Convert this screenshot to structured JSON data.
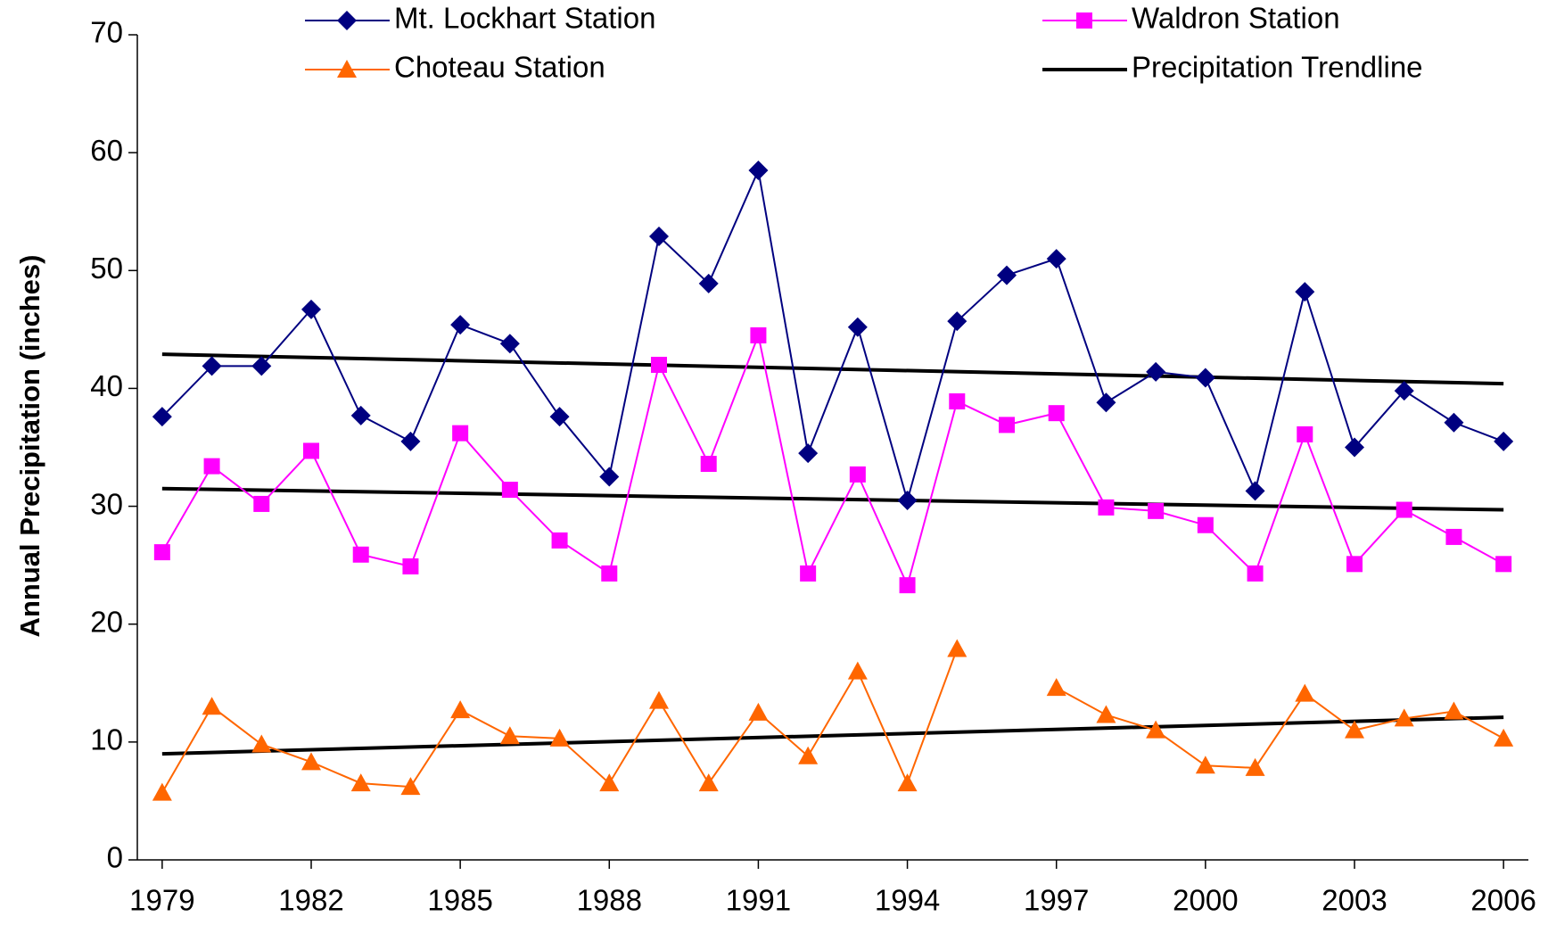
{
  "chart_data": {
    "type": "line",
    "y_label": "Annual Precipitation (inches)",
    "x": [
      1979,
      1980,
      1981,
      1982,
      1983,
      1984,
      1985,
      1986,
      1987,
      1988,
      1989,
      1990,
      1991,
      1992,
      1993,
      1994,
      1995,
      1996,
      1997,
      1998,
      1999,
      2000,
      2001,
      2002,
      2003,
      2004,
      2005,
      2006
    ],
    "xlim": [
      1978.5,
      2006.5
    ],
    "xticks": [
      1979,
      1982,
      1985,
      1988,
      1991,
      1994,
      1997,
      2000,
      2003,
      2006
    ],
    "ylim": [
      0,
      70
    ],
    "yticks": [
      0,
      10,
      20,
      30,
      40,
      50,
      60,
      70
    ],
    "series": [
      {
        "name": "Mt. Lockhart Station",
        "color": "#000080",
        "marker": "diamond",
        "values": [
          37.6,
          41.9,
          41.9,
          46.7,
          37.7,
          35.5,
          45.4,
          43.8,
          37.6,
          32.5,
          52.9,
          48.9,
          58.5,
          34.5,
          45.2,
          30.5,
          45.7,
          49.6,
          51.0,
          38.8,
          41.4,
          40.9,
          31.3,
          48.2,
          35.0,
          39.8,
          37.1,
          35.5
        ]
      },
      {
        "name": "Waldron Station",
        "color": "#ff00ff",
        "marker": "square",
        "values": [
          26.1,
          33.4,
          30.2,
          34.7,
          25.9,
          24.9,
          36.2,
          31.4,
          27.1,
          24.3,
          42.0,
          33.6,
          44.5,
          24.3,
          32.7,
          23.3,
          38.9,
          36.9,
          37.9,
          29.9,
          29.6,
          28.4,
          24.3,
          36.1,
          25.1,
          29.7,
          27.4,
          25.1
        ]
      },
      {
        "name": "Choteau Station",
        "color": "#ff6600",
        "marker": "triangle",
        "values": [
          5.7,
          13.0,
          9.8,
          8.3,
          6.5,
          6.2,
          12.7,
          10.5,
          10.3,
          6.5,
          13.5,
          6.5,
          12.5,
          8.8,
          16.0,
          6.5,
          17.9,
          null,
          14.6,
          12.3,
          11.0,
          8.0,
          7.8,
          14.1,
          11.0,
          12.0,
          12.6,
          10.3
        ]
      }
    ],
    "trendline": {
      "name": "Precipitation Trendline",
      "color": "#000000",
      "x": [
        1979,
        2006
      ],
      "lines": [
        [
          42.9,
          40.4
        ],
        [
          31.5,
          29.7
        ],
        [
          9.0,
          12.1
        ]
      ]
    }
  }
}
